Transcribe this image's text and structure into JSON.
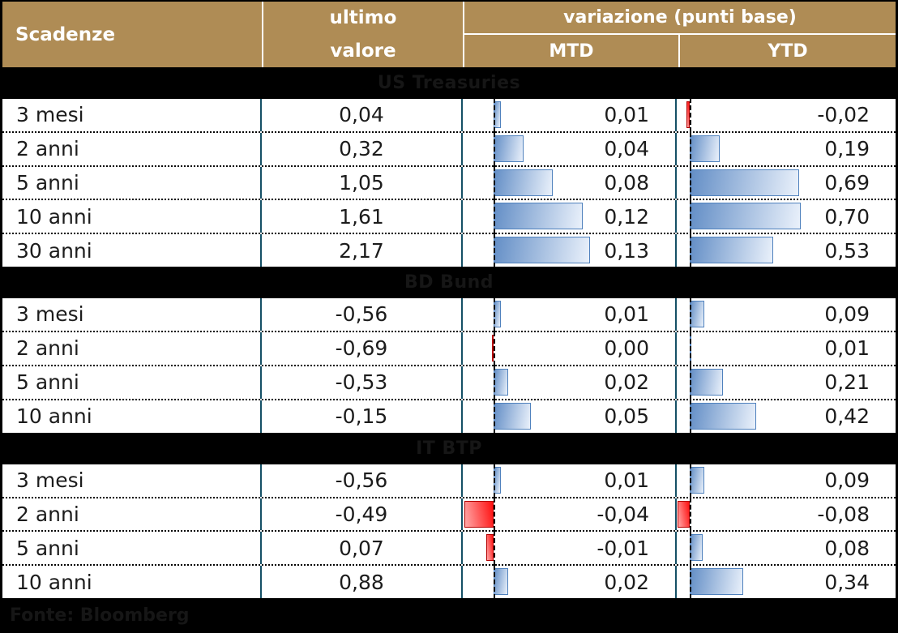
{
  "header": {
    "scadenze": "Scadenze",
    "ultimo_valore": [
      "ultimo",
      "valore"
    ],
    "variazione": "variazione (punti base)",
    "mtd": "MTD",
    "ytd": "YTD"
  },
  "footer": {
    "source": "Fonte: Bloomberg"
  },
  "colors": {
    "header_bg": "#AF8C55",
    "divider": "#155066",
    "bar_blue_border": "#4F81BD",
    "bar_blue_dark": "#638EC6",
    "bar_blue_light": "#EAF1FB",
    "bar_red_border": "#B40000",
    "bar_red_dark": "#FF0F0F",
    "bar_red_light": "#FFA8A8",
    "section_title_text": "#161616",
    "row_text": "#1C1C1C"
  },
  "chart_data": {
    "type": "table",
    "columns": [
      "Scadenze",
      "ultimo valore",
      "variazione (punti base) MTD",
      "variazione (punti base) YTD"
    ],
    "value_format": "italian decimal comma, basis-point changes shown as data bars (blue = positive, red = negative)",
    "sections": [
      {
        "title": "US Treasuries",
        "rows": [
          {
            "label": "3 mesi",
            "last": "0,04",
            "mtd": {
              "text": "0,01",
              "value": 0.01,
              "negative": false
            },
            "ytd": {
              "text": "-0,02",
              "value": -0.02,
              "negative": true
            }
          },
          {
            "label": "2 anni",
            "last": "0,32",
            "mtd": {
              "text": "0,04",
              "value": 0.04,
              "negative": false
            },
            "ytd": {
              "text": "0,19",
              "value": 0.19,
              "negative": false
            }
          },
          {
            "label": "5 anni",
            "last": "1,05",
            "mtd": {
              "text": "0,08",
              "value": 0.08,
              "negative": false
            },
            "ytd": {
              "text": "0,69",
              "value": 0.69,
              "negative": false
            }
          },
          {
            "label": "10 anni",
            "last": "1,61",
            "mtd": {
              "text": "0,12",
              "value": 0.12,
              "negative": false
            },
            "ytd": {
              "text": "0,70",
              "value": 0.7,
              "negative": false
            }
          },
          {
            "label": "30 anni",
            "last": "2,17",
            "mtd": {
              "text": "0,13",
              "value": 0.13,
              "negative": false
            },
            "ytd": {
              "text": "0,53",
              "value": 0.53,
              "negative": false
            }
          }
        ]
      },
      {
        "title": "BD Bund",
        "rows": [
          {
            "label": "3 mesi",
            "last": "-0,56",
            "mtd": {
              "text": "0,01",
              "value": 0.01,
              "negative": false
            },
            "ytd": {
              "text": "0,09",
              "value": 0.09,
              "negative": false
            }
          },
          {
            "label": "2 anni",
            "last": "-0,69",
            "mtd": {
              "text": "0,00",
              "value": 0.0,
              "negative": true
            },
            "ytd": {
              "text": "0,01",
              "value": 0.01,
              "negative": false
            }
          },
          {
            "label": "5 anni",
            "last": "-0,53",
            "mtd": {
              "text": "0,02",
              "value": 0.02,
              "negative": false
            },
            "ytd": {
              "text": "0,21",
              "value": 0.21,
              "negative": false
            }
          },
          {
            "label": "10 anni",
            "last": "-0,15",
            "mtd": {
              "text": "0,05",
              "value": 0.05,
              "negative": false
            },
            "ytd": {
              "text": "0,42",
              "value": 0.42,
              "negative": false
            }
          }
        ]
      },
      {
        "title": "IT BTP",
        "rows": [
          {
            "label": "3 mesi",
            "last": "-0,56",
            "mtd": {
              "text": "0,01",
              "value": 0.01,
              "negative": false
            },
            "ytd": {
              "text": "0,09",
              "value": 0.09,
              "negative": false
            }
          },
          {
            "label": "2 anni",
            "last": "-0,49",
            "mtd": {
              "text": "-0,04",
              "value": -0.04,
              "negative": true
            },
            "ytd": {
              "text": "-0,08",
              "value": -0.08,
              "negative": true
            }
          },
          {
            "label": "5 anni",
            "last": "0,07",
            "mtd": {
              "text": "-0,01",
              "value": -0.01,
              "negative": true
            },
            "ytd": {
              "text": "0,08",
              "value": 0.08,
              "negative": false
            }
          },
          {
            "label": "10 anni",
            "last": "0,88",
            "mtd": {
              "text": "0,02",
              "value": 0.02,
              "negative": false
            },
            "ytd": {
              "text": "0,34",
              "value": 0.34,
              "negative": false
            }
          }
        ]
      }
    ]
  }
}
